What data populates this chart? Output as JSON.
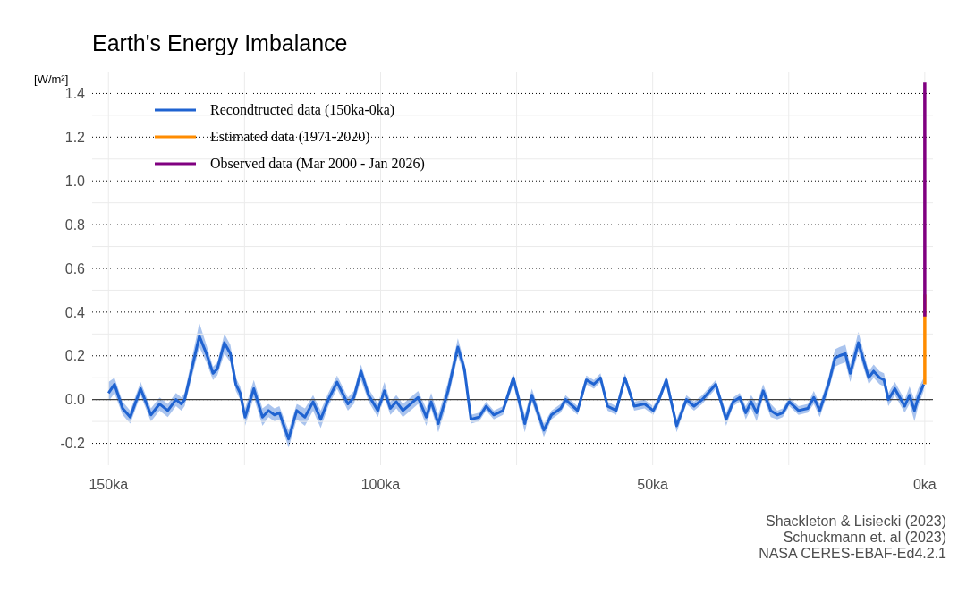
{
  "chart_data": {
    "type": "line",
    "title": "Earth's Energy Imbalance",
    "ylabel": "[W/m²]",
    "xlim": [
      153,
      -1.5
    ],
    "xticks": [
      {
        "value": 150,
        "label": "150ka"
      },
      {
        "value": 125,
        "label": null
      },
      {
        "value": 100,
        "label": "100ka"
      },
      {
        "value": 75,
        "label": null
      },
      {
        "value": 50,
        "label": "50ka"
      },
      {
        "value": 25,
        "label": null
      },
      {
        "value": 0,
        "label": "0ka"
      }
    ],
    "ylim": [
      -0.3,
      1.5
    ],
    "yticks": [
      {
        "value": -0.2,
        "label": "-0.2"
      },
      {
        "value": -0.1,
        "label": null
      },
      {
        "value": 0,
        "label": "0.0"
      },
      {
        "value": 0.1,
        "label": null
      },
      {
        "value": 0.2,
        "label": "0.2"
      },
      {
        "value": 0.3,
        "label": null
      },
      {
        "value": 0.4,
        "label": "0.4"
      },
      {
        "value": 0.5,
        "label": null
      },
      {
        "value": 0.6,
        "label": "0.6"
      },
      {
        "value": 0.7,
        "label": null
      },
      {
        "value": 0.8,
        "label": "0.8"
      },
      {
        "value": 0.9,
        "label": null
      },
      {
        "value": 1,
        "label": "1.0"
      },
      {
        "value": 1.1,
        "label": null
      },
      {
        "value": 1.2,
        "label": "1.2"
      },
      {
        "value": 1.3,
        "label": null
      },
      {
        "value": 1.4,
        "label": "1.4"
      }
    ],
    "grid": true,
    "legend": "top left",
    "ref_lines": [
      {
        "axis": "y",
        "value": 0,
        "color": "#404040",
        "line_style": "solid"
      }
    ],
    "series": [
      {
        "name": "Recondtructed data (150ka-0ka)",
        "color": "#1f63d1",
        "x": [
          150,
          148.9,
          147.4,
          146,
          144.1,
          142.2,
          140.6,
          139.1,
          137.6,
          136.6,
          136,
          133.3,
          132,
          130.8,
          130,
          128.7,
          127.6,
          126.6,
          125.8,
          124.9,
          123.3,
          121.7,
          120.6,
          119.5,
          118.6,
          116.9,
          115.4,
          113.9,
          112.4,
          111,
          109.6,
          108,
          106,
          104.9,
          103.6,
          102.2,
          100.5,
          99.3,
          98.2,
          97.1,
          95.9,
          94.5,
          93.1,
          91.6,
          90.7,
          89.4,
          87.6,
          85.8,
          84.6,
          83.4,
          81.9,
          80.6,
          79.2,
          77.5,
          75.6,
          73.5,
          72.2,
          70,
          68.6,
          66.9,
          66,
          63.8,
          62.2,
          60.8,
          59.6,
          58.3,
          56.7,
          55.1,
          53.4,
          51.5,
          49.9,
          49,
          47.5,
          45.6,
          43.8,
          42.4,
          40.9,
          38.4,
          36.5,
          35.2,
          34,
          32.9,
          31.9,
          30.9,
          29.7,
          28.3,
          27.1,
          26.1,
          24.9,
          23.2,
          21.5,
          20.4,
          19.3,
          17.7,
          16.5,
          15.7,
          14.6,
          13.7,
          12.2,
          10.3,
          9.4,
          8.3,
          7.5,
          6.7,
          5.5,
          3.7,
          2.8,
          1.9,
          1.2,
          0.2
        ],
        "values": [
          0.03,
          0.07,
          -0.04,
          -0.08,
          0.05,
          -0.07,
          -0.02,
          -0.05,
          0,
          -0.02,
          0,
          0.29,
          0.21,
          0.12,
          0.14,
          0.26,
          0.21,
          0.07,
          0.03,
          -0.08,
          0.05,
          -0.08,
          -0.05,
          -0.07,
          -0.06,
          -0.18,
          -0.05,
          -0.08,
          -0.01,
          -0.09,
          0,
          0.08,
          -0.02,
          0.01,
          0.13,
          0.02,
          -0.05,
          0.04,
          -0.04,
          -0.01,
          -0.05,
          -0.02,
          0.01,
          -0.08,
          -0.01,
          -0.11,
          0.04,
          0.24,
          0.14,
          -0.09,
          -0.08,
          -0.03,
          -0.07,
          -0.05,
          0.1,
          -0.11,
          0.02,
          -0.14,
          -0.07,
          -0.04,
          0,
          -0.05,
          0.09,
          0.07,
          0.1,
          -0.03,
          -0.05,
          0.1,
          -0.03,
          -0.02,
          -0.05,
          -0.01,
          0.09,
          -0.12,
          0,
          -0.03,
          0,
          0.07,
          -0.09,
          -0.01,
          0.01,
          -0.06,
          -0.01,
          -0.06,
          0.04,
          -0.05,
          -0.07,
          -0.06,
          -0.01,
          -0.05,
          -0.04,
          0.01,
          -0.05,
          0.07,
          0.19,
          0.2,
          0.21,
          0.12,
          0.26,
          0.1,
          0.13,
          0.1,
          0.09,
          0,
          0.05,
          -0.03,
          0.02,
          -0.05,
          0.01,
          0.07
        ],
        "lower": [
          -0.01,
          0.03,
          -0.07,
          -0.11,
          0.02,
          -0.1,
          -0.05,
          -0.08,
          -0.03,
          -0.05,
          -0.03,
          0.24,
          0.17,
          0.09,
          0.11,
          0.21,
          0.17,
          0.04,
          0,
          -0.12,
          0.01,
          -0.12,
          -0.08,
          -0.1,
          -0.09,
          -0.22,
          -0.09,
          -0.12,
          -0.05,
          -0.13,
          -0.03,
          0.05,
          -0.05,
          -0.02,
          0.09,
          -0.01,
          -0.08,
          0.01,
          -0.07,
          -0.04,
          -0.08,
          -0.05,
          -0.02,
          -0.12,
          -0.04,
          -0.15,
          0,
          0.2,
          0.11,
          -0.11,
          -0.1,
          -0.05,
          -0.09,
          -0.07,
          0.07,
          -0.15,
          -0.01,
          -0.17,
          -0.09,
          -0.06,
          -0.02,
          -0.07,
          0.07,
          0.05,
          0.08,
          -0.05,
          -0.07,
          0.08,
          -0.05,
          -0.04,
          -0.07,
          -0.03,
          0.07,
          -0.15,
          -0.02,
          -0.05,
          -0.02,
          0.05,
          -0.12,
          -0.03,
          -0.01,
          -0.09,
          -0.04,
          -0.1,
          0.01,
          -0.08,
          -0.09,
          -0.08,
          -0.03,
          -0.07,
          -0.06,
          -0.02,
          -0.08,
          0.04,
          0.15,
          0.16,
          0.17,
          0.08,
          0.22,
          0.07,
          0.1,
          0.07,
          0.06,
          -0.03,
          0.02,
          -0.06,
          -0.02,
          -0.1,
          -0.03,
          0.04
        ],
        "upper": [
          0.08,
          0.1,
          -0.01,
          -0.05,
          0.08,
          -0.04,
          0.01,
          -0.02,
          0.03,
          0.01,
          0.03,
          0.35,
          0.25,
          0.15,
          0.17,
          0.3,
          0.25,
          0.1,
          0.06,
          -0.04,
          0.09,
          -0.04,
          -0.02,
          -0.04,
          -0.03,
          -0.14,
          -0.02,
          -0.04,
          0.02,
          -0.05,
          0.03,
          0.11,
          0.01,
          0.04,
          0.16,
          0.05,
          -0.02,
          0.08,
          -0.01,
          0.02,
          -0.02,
          0.01,
          0.04,
          -0.04,
          0.03,
          -0.07,
          0.08,
          0.28,
          0.17,
          -0.07,
          -0.06,
          -0.01,
          -0.05,
          -0.03,
          0.12,
          -0.07,
          0.05,
          -0.11,
          -0.05,
          -0.02,
          0.02,
          -0.03,
          0.11,
          0.09,
          0.12,
          -0.01,
          -0.03,
          0.12,
          -0.01,
          0,
          -0.03,
          0.01,
          0.11,
          -0.09,
          0.02,
          -0.01,
          0.02,
          0.09,
          -0.06,
          0.01,
          0.03,
          -0.03,
          0.02,
          -0.02,
          0.07,
          -0.02,
          -0.05,
          -0.04,
          0.01,
          -0.03,
          -0.02,
          0.04,
          -0.02,
          0.1,
          0.23,
          0.24,
          0.25,
          0.16,
          0.31,
          0.13,
          0.16,
          0.13,
          0.12,
          0.03,
          0.08,
          0,
          0.06,
          0,
          0.05,
          0.1
        ]
      },
      {
        "name": "Estimated data (1971-2020)",
        "color": "#ff8c00",
        "x": [
          0,
          0
        ],
        "values": [
          0.07,
          0.48
        ]
      },
      {
        "name": "Observed data (Mar 2000 - Jan 2026)",
        "color": "#800080",
        "x": [
          0,
          0
        ],
        "values": [
          0.38,
          1.45
        ]
      }
    ],
    "annotations": [
      "Shackleton & Lisiecki (2023)",
      "Schuckmann et. al (2023)",
      "NASA CERES-EBAF-Ed4.2.1"
    ]
  }
}
